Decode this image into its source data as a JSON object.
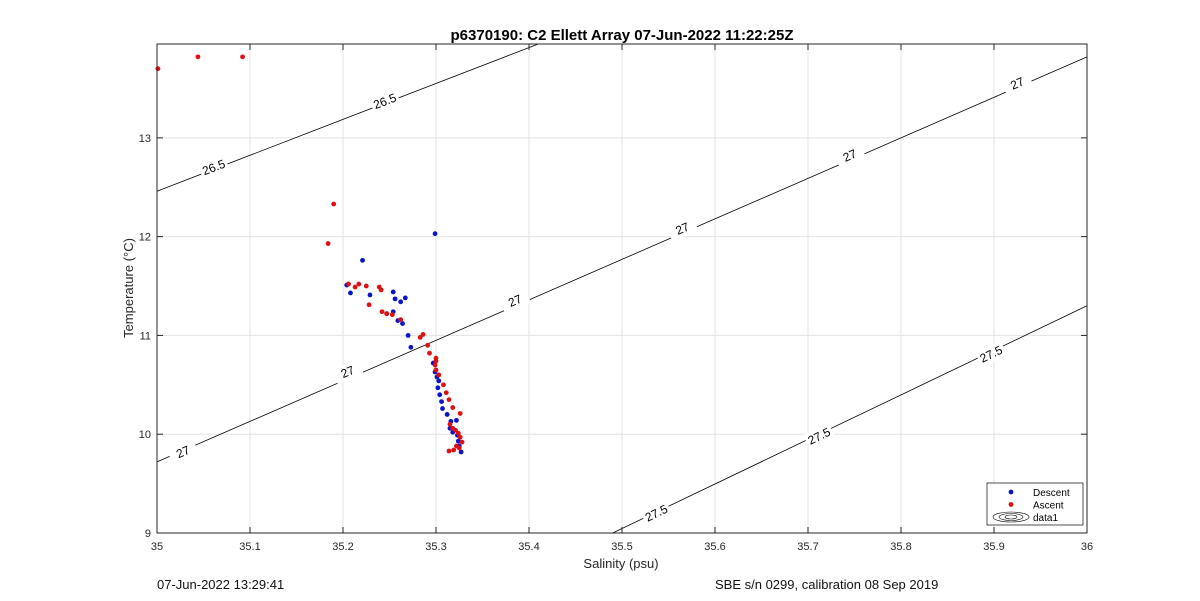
{
  "chart_data": {
    "type": "scatter",
    "title": "p6370190: C2 Ellett Array 07-Jun-2022 11:22:25Z",
    "xlabel": "Salinity (psu)",
    "ylabel": "Temperature (°C)",
    "xlim": [
      35,
      36
    ],
    "ylim": [
      9,
      13.95
    ],
    "x_ticks": [
      "35",
      "35.1",
      "35.2",
      "35.3",
      "35.4",
      "35.5",
      "35.6",
      "35.7",
      "35.8",
      "35.9",
      "36"
    ],
    "x_tick_values": [
      35,
      35.1,
      35.2,
      35.3,
      35.4,
      35.5,
      35.6,
      35.7,
      35.8,
      35.9,
      36
    ],
    "y_ticks": [
      "9",
      "10",
      "11",
      "12",
      "13"
    ],
    "y_tick_values": [
      9,
      10,
      11,
      12,
      13
    ],
    "grid": true,
    "legend": {
      "placement": "bottom-right",
      "entries": [
        "Descent",
        "Ascent",
        "data1"
      ]
    },
    "colors": {
      "descent": "#0a14c8",
      "ascent": "#dd1111",
      "contour": "#000000",
      "grid": "#e3e3e3"
    },
    "series": [
      {
        "name": "Descent",
        "points": [
          [
            35.299,
            12.03
          ],
          [
            35.221,
            11.76
          ],
          [
            35.204,
            11.51
          ],
          [
            35.208,
            11.43
          ],
          [
            35.229,
            11.41
          ],
          [
            35.254,
            11.44
          ],
          [
            35.256,
            11.37
          ],
          [
            35.262,
            11.34
          ],
          [
            35.267,
            11.38
          ],
          [
            35.247,
            11.22
          ],
          [
            35.254,
            11.24
          ],
          [
            35.259,
            11.15
          ],
          [
            35.264,
            11.12
          ],
          [
            35.27,
            11.0
          ],
          [
            35.273,
            10.88
          ],
          [
            35.297,
            10.72
          ],
          [
            35.299,
            10.63
          ],
          [
            35.301,
            10.58
          ],
          [
            35.303,
            10.54
          ],
          [
            35.302,
            10.47
          ],
          [
            35.304,
            10.4
          ],
          [
            35.306,
            10.33
          ],
          [
            35.307,
            10.26
          ],
          [
            35.312,
            10.2
          ],
          [
            35.316,
            10.13
          ],
          [
            35.315,
            10.06
          ],
          [
            35.318,
            10.02
          ],
          [
            35.322,
            10.14
          ],
          [
            35.323,
            9.99
          ],
          [
            35.324,
            9.93
          ],
          [
            35.325,
            9.88
          ],
          [
            35.327,
            9.82
          ]
        ]
      },
      {
        "name": "Ascent",
        "points": [
          [
            35.001,
            13.7
          ],
          [
            35.044,
            13.82
          ],
          [
            35.092,
            13.82
          ],
          [
            35.19,
            12.33
          ],
          [
            35.184,
            11.93
          ],
          [
            35.206,
            11.52
          ],
          [
            35.213,
            11.49
          ],
          [
            35.217,
            11.52
          ],
          [
            35.225,
            11.5
          ],
          [
            35.239,
            11.49
          ],
          [
            35.241,
            11.46
          ],
          [
            35.228,
            11.31
          ],
          [
            35.242,
            11.24
          ],
          [
            35.247,
            11.22
          ],
          [
            35.253,
            11.21
          ],
          [
            35.262,
            11.16
          ],
          [
            35.286,
            11.01
          ],
          [
            35.283,
            10.98
          ],
          [
            35.291,
            10.9
          ],
          [
            35.293,
            10.82
          ],
          [
            35.3,
            10.77
          ],
          [
            35.3,
            10.74
          ],
          [
            35.299,
            10.7
          ],
          [
            35.3,
            10.65
          ],
          [
            35.303,
            10.6
          ],
          [
            35.308,
            10.5
          ],
          [
            35.311,
            10.42
          ],
          [
            35.314,
            10.35
          ],
          [
            35.318,
            10.27
          ],
          [
            35.326,
            10.21
          ],
          [
            35.315,
            10.1
          ],
          [
            35.318,
            10.06
          ],
          [
            35.321,
            10.04
          ],
          [
            35.324,
            10.01
          ],
          [
            35.326,
            9.97
          ],
          [
            35.328,
            9.92
          ],
          [
            35.322,
            9.88
          ],
          [
            35.319,
            9.84
          ],
          [
            35.314,
            9.83
          ],
          [
            35.325,
            9.86
          ]
        ]
      }
    ],
    "isopycnals": [
      {
        "label": "26.5",
        "line": [
          [
            35.0,
            12.46
          ],
          [
            35.41,
            13.95
          ]
        ],
        "label_points": [
          [
            35.061,
            12.7
          ],
          [
            35.245,
            13.37
          ]
        ]
      },
      {
        "label": "27",
        "line": [
          [
            35.0,
            9.72
          ],
          [
            36.0,
            13.82
          ]
        ],
        "label_points": [
          [
            35.028,
            9.82
          ],
          [
            35.205,
            10.63
          ],
          [
            35.385,
            11.35
          ],
          [
            35.565,
            12.08
          ],
          [
            35.745,
            12.82
          ],
          [
            35.925,
            13.55
          ]
        ]
      },
      {
        "label": "27.5",
        "line": [
          [
            35.49,
            9.0
          ],
          [
            36.0,
            11.3
          ]
        ],
        "label_points": [
          [
            35.537,
            9.2
          ],
          [
            35.712,
            9.98
          ],
          [
            35.897,
            10.81
          ]
        ]
      }
    ]
  },
  "footer": {
    "left": "07-Jun-2022 13:29:41",
    "right": "SBE s/n 0299, calibration 08 Sep 2019"
  }
}
